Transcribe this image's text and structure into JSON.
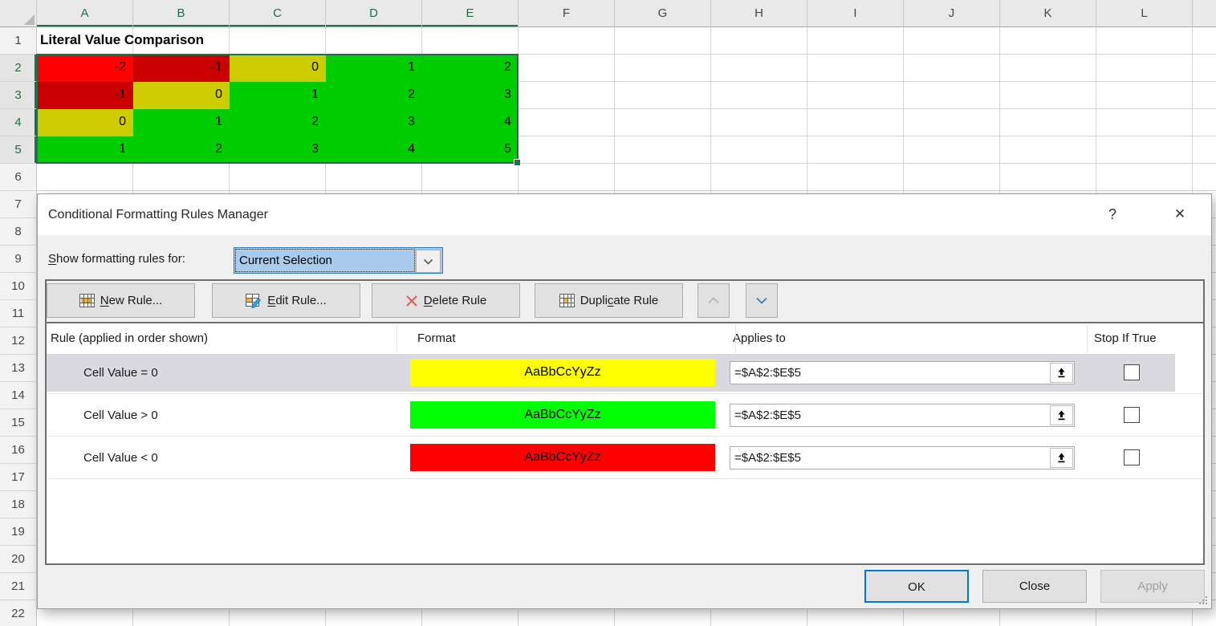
{
  "spreadsheet": {
    "columns": [
      "A",
      "B",
      "C",
      "D",
      "E",
      "F",
      "G",
      "H",
      "I",
      "J",
      "K",
      "L"
    ],
    "selected_columns": [
      "A",
      "B",
      "C",
      "D",
      "E"
    ],
    "row_count": 22,
    "selected_rows": [
      2,
      3,
      4,
      5
    ],
    "selected_range": "A2:E5",
    "title_cell": {
      "col": "A",
      "row": 1,
      "text": "Literal Value Comparison"
    },
    "data_rows": [
      {
        "row": 2,
        "cells": [
          {
            "col": "A",
            "value": "-2",
            "bg": "#FF0000"
          },
          {
            "col": "B",
            "value": "-1",
            "bg": "#CA0000"
          },
          {
            "col": "C",
            "value": "0",
            "bg": "#CCCC00"
          },
          {
            "col": "D",
            "value": "1",
            "bg": "#00CC00"
          },
          {
            "col": "E",
            "value": "2",
            "bg": "#00CC00"
          }
        ]
      },
      {
        "row": 3,
        "cells": [
          {
            "col": "A",
            "value": "-1",
            "bg": "#CA0000"
          },
          {
            "col": "B",
            "value": "0",
            "bg": "#CCCC00"
          },
          {
            "col": "C",
            "value": "1",
            "bg": "#00CC00"
          },
          {
            "col": "D",
            "value": "2",
            "bg": "#00CC00"
          },
          {
            "col": "E",
            "value": "3",
            "bg": "#00CC00"
          }
        ]
      },
      {
        "row": 4,
        "cells": [
          {
            "col": "A",
            "value": "0",
            "bg": "#CCCC00"
          },
          {
            "col": "B",
            "value": "1",
            "bg": "#00CC00"
          },
          {
            "col": "C",
            "value": "2",
            "bg": "#00CC00"
          },
          {
            "col": "D",
            "value": "3",
            "bg": "#00CC00"
          },
          {
            "col": "E",
            "value": "4",
            "bg": "#00CC00"
          }
        ]
      },
      {
        "row": 5,
        "cells": [
          {
            "col": "A",
            "value": "1",
            "bg": "#00CC00"
          },
          {
            "col": "B",
            "value": "2",
            "bg": "#00CC00"
          },
          {
            "col": "C",
            "value": "3",
            "bg": "#00CC00"
          },
          {
            "col": "D",
            "value": "4",
            "bg": "#00CC00"
          },
          {
            "col": "E",
            "value": "5",
            "bg": "#00CC00"
          }
        ]
      }
    ],
    "accent_green": "#217346"
  },
  "dialog": {
    "title": "Conditional Formatting Rules Manager",
    "help_glyph": "?",
    "close_glyph": "✕",
    "show_rules_label": {
      "label": "Show formatting rules for:",
      "underline": 0
    },
    "scope_dropdown": {
      "value": "Current Selection"
    },
    "toolbar": {
      "new_rule": {
        "label": "New Rule...",
        "underline": 0
      },
      "edit_rule": {
        "label": "Edit Rule...",
        "underline": 0
      },
      "delete_rule": {
        "label": "Delete Rule",
        "underline": 0
      },
      "duplicate_rule": {
        "label": "Duplicate Rule",
        "underline": 5
      }
    },
    "list_headers": {
      "rule": "Rule (applied in order shown)",
      "format": "Format",
      "applies_to": "Applies to",
      "stop_if_true": "Stop If True"
    },
    "rules": [
      {
        "condition": "Cell Value = 0",
        "format_text": "AaBbCcYyZz",
        "format_bg": "#FFFF00",
        "applies_to": "=$A$2:$E$5",
        "stop_if_true": false,
        "selected": true
      },
      {
        "condition": "Cell Value > 0",
        "format_text": "AaBbCcYyZz",
        "format_bg": "#00FF00",
        "applies_to": "=$A$2:$E$5",
        "stop_if_true": false,
        "selected": false
      },
      {
        "condition": "Cell Value < 0",
        "format_text": "AaBbCcYyZz",
        "format_bg": "#FF0000",
        "applies_to": "=$A$2:$E$5",
        "stop_if_true": false,
        "selected": false
      }
    ],
    "footer": {
      "ok": "OK",
      "close": "Close",
      "apply": "Apply",
      "apply_enabled": false
    }
  }
}
